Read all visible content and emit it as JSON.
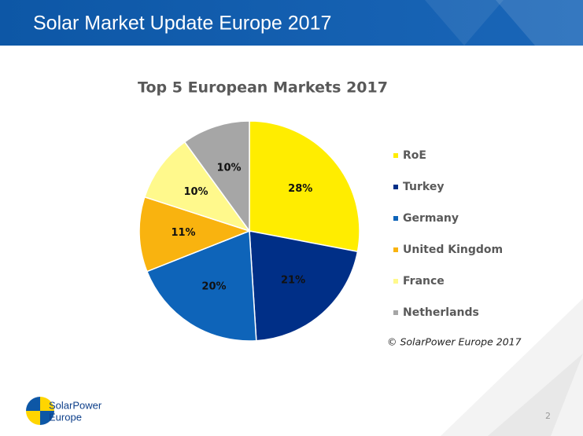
{
  "header": {
    "title": "Solar Market Update Europe 2017"
  },
  "chart_data": {
    "type": "pie",
    "title": "Top 5 European Markets 2017",
    "categories": [
      "RoE",
      "Turkey",
      "Germany",
      "United Kingdom",
      "France",
      "Netherlands"
    ],
    "values": [
      28,
      21,
      20,
      11,
      10,
      10
    ],
    "value_labels": [
      "28%",
      "21%",
      "20%",
      "11%",
      "10%",
      "10%"
    ],
    "colors": [
      "#ffed00",
      "#002f87",
      "#0e64b9",
      "#f9b30f",
      "#fff98c",
      "#a6a6a6"
    ],
    "legend": "right",
    "annotation": "© SolarPower Europe 2017"
  },
  "logo": {
    "line1": "SolarPower",
    "line2": "Europe"
  },
  "page_number": "2"
}
